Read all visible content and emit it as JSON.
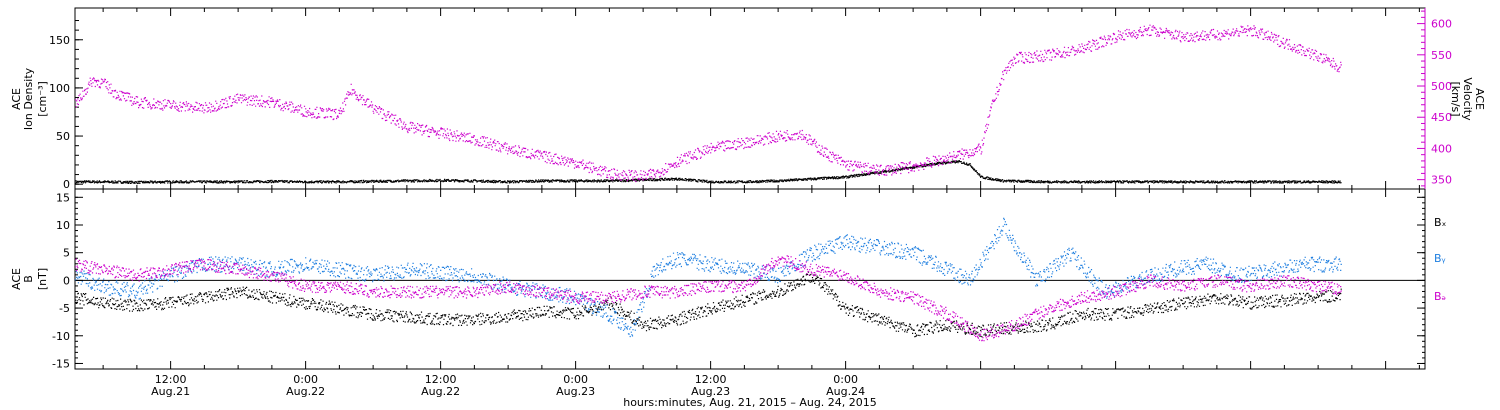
{
  "chart_data": [
    {
      "type": "scatter",
      "panel": "density-velocity",
      "ylabel_left": [
        "ACE",
        "Ion Density",
        "[cm⁻³]"
      ],
      "ylabel_right": [
        "ACE",
        "Velocity",
        "[km/s]"
      ],
      "yticks_left": [
        "0",
        "50",
        "100",
        "150"
      ],
      "ylim_left": [
        -5,
        183
      ],
      "yticks_right": [
        "350",
        "400",
        "450",
        "500",
        "550",
        "600"
      ],
      "ylim_right": [
        335,
        625
      ],
      "x_hours_since_aug21_start": [
        3.5,
        120
      ],
      "series": [
        {
          "axis": "left",
          "color": "#000000",
          "points": [
            [
              3.5,
              3
            ],
            [
              6,
              3
            ],
            [
              9,
              2.5
            ],
            [
              12,
              3
            ],
            [
              15,
              3
            ],
            [
              18,
              3
            ],
            [
              21,
              3.5
            ],
            [
              24,
              3
            ],
            [
              27,
              3
            ],
            [
              30,
              3.5
            ],
            [
              33,
              4
            ],
            [
              36,
              4.5
            ],
            [
              39,
              4
            ],
            [
              42,
              3
            ],
            [
              45,
              4
            ],
            [
              48,
              4
            ],
            [
              51,
              4
            ],
            [
              54,
              5
            ],
            [
              57,
              6
            ],
            [
              60,
              3
            ],
            [
              63,
              3
            ],
            [
              66,
              4
            ],
            [
              69,
              6
            ],
            [
              72,
              8
            ],
            [
              75,
              13
            ],
            [
              78,
              18
            ],
            [
              80,
              22
            ],
            [
              82,
              24
            ],
            [
              83,
              21
            ],
            [
              84,
              8
            ],
            [
              86,
              4
            ],
            [
              90,
              3
            ],
            [
              94,
              3
            ],
            [
              98,
              3
            ],
            [
              102,
              3
            ],
            [
              106,
              3
            ],
            [
              110,
              3
            ],
            [
              114,
              3
            ],
            [
              116,
              3
            ]
          ]
        },
        {
          "axis": "right",
          "color": "#cc00cc",
          "points": [
            [
              3.5,
              470
            ],
            [
              5,
              510
            ],
            [
              6,
              505
            ],
            [
              7,
              490
            ],
            [
              9,
              475
            ],
            [
              12,
              470
            ],
            [
              15,
              465
            ],
            [
              18,
              480
            ],
            [
              21,
              475
            ],
            [
              24,
              460
            ],
            [
              27,
              455
            ],
            [
              28,
              495
            ],
            [
              30,
              465
            ],
            [
              33,
              435
            ],
            [
              36,
              425
            ],
            [
              39,
              415
            ],
            [
              42,
              400
            ],
            [
              45,
              388
            ],
            [
              48,
              378
            ],
            [
              51,
              360
            ],
            [
              54,
              356
            ],
            [
              55,
              360
            ],
            [
              57,
              380
            ],
            [
              60,
              400
            ],
            [
              63,
              410
            ],
            [
              66,
              420
            ],
            [
              68,
              425
            ],
            [
              70,
              395
            ],
            [
              72,
              375
            ],
            [
              75,
              365
            ],
            [
              78,
              372
            ],
            [
              81,
              385
            ],
            [
              84,
              400
            ],
            [
              85,
              470
            ],
            [
              86,
              520
            ],
            [
              87,
              545
            ],
            [
              90,
              550
            ],
            [
              93,
              560
            ],
            [
              96,
              580
            ],
            [
              99,
              590
            ],
            [
              102,
              580
            ],
            [
              105,
              583
            ],
            [
              108,
              590
            ],
            [
              111,
              570
            ],
            [
              114,
              548
            ],
            [
              116,
              530
            ]
          ]
        }
      ]
    },
    {
      "type": "scatter",
      "panel": "magnetic-field",
      "ylabel": [
        "ACE",
        "B",
        "[nT]"
      ],
      "yticks": [
        "-15",
        "-10",
        "-5",
        "0",
        "5",
        "10",
        "15"
      ],
      "ylim": [
        -16,
        16.5
      ],
      "legend": [
        "Bₓ",
        "Bᵧ",
        "Bₔ"
      ],
      "legend_placement": "right",
      "x_hours_since_aug21_start": [
        3.5,
        120
      ],
      "series": [
        {
          "name": "Bx",
          "color": "#000000",
          "points": [
            [
              3.5,
              -3
            ],
            [
              6,
              -4
            ],
            [
              9,
              -4.5
            ],
            [
              12,
              -4
            ],
            [
              15,
              -3
            ],
            [
              18,
              -2
            ],
            [
              21,
              -3
            ],
            [
              24,
              -4
            ],
            [
              27,
              -5
            ],
            [
              30,
              -6
            ],
            [
              33,
              -6.5
            ],
            [
              36,
              -7
            ],
            [
              39,
              -7
            ],
            [
              42,
              -6.5
            ],
            [
              45,
              -5.5
            ],
            [
              48,
              -6
            ],
            [
              51,
              -4
            ],
            [
              54,
              -8
            ],
            [
              57,
              -7
            ],
            [
              60,
              -5
            ],
            [
              63,
              -3.5
            ],
            [
              66,
              -2
            ],
            [
              69,
              1
            ],
            [
              72,
              -5
            ],
            [
              75,
              -7
            ],
            [
              78,
              -9
            ],
            [
              81,
              -8
            ],
            [
              84,
              -9
            ],
            [
              87,
              -8.5
            ],
            [
              90,
              -8
            ],
            [
              93,
              -6
            ],
            [
              96,
              -6
            ],
            [
              99,
              -5
            ],
            [
              102,
              -4
            ],
            [
              105,
              -3
            ],
            [
              108,
              -4
            ],
            [
              111,
              -3.5
            ],
            [
              114,
              -3
            ],
            [
              116,
              -2.5
            ]
          ]
        },
        {
          "name": "By",
          "color": "#1f7fe0",
          "points": [
            [
              3.5,
              1
            ],
            [
              6,
              -1
            ],
            [
              9,
              -2
            ],
            [
              12,
              1
            ],
            [
              15,
              3
            ],
            [
              18,
              3
            ],
            [
              21,
              2
            ],
            [
              24,
              3
            ],
            [
              27,
              2
            ],
            [
              30,
              1
            ],
            [
              33,
              2
            ],
            [
              36,
              1.5
            ],
            [
              39,
              1
            ],
            [
              42,
              -1
            ],
            [
              45,
              -2
            ],
            [
              48,
              -3
            ],
            [
              51,
              -6
            ],
            [
              53,
              -9
            ],
            [
              55,
              2
            ],
            [
              57,
              4
            ],
            [
              60,
              3
            ],
            [
              63,
              2
            ],
            [
              66,
              1
            ],
            [
              69,
              5
            ],
            [
              72,
              7
            ],
            [
              75,
              6
            ],
            [
              78,
              5
            ],
            [
              80,
              3
            ],
            [
              83,
              0
            ],
            [
              86,
              10
            ],
            [
              89,
              0
            ],
            [
              92,
              5
            ],
            [
              95,
              -2
            ],
            [
              98,
              0
            ],
            [
              101,
              2
            ],
            [
              104,
              3
            ],
            [
              107,
              1
            ],
            [
              110,
              2
            ],
            [
              113,
              3
            ],
            [
              116,
              3
            ]
          ]
        },
        {
          "name": "Bz",
          "color": "#cc00cc",
          "points": [
            [
              3.5,
              3
            ],
            [
              6,
              2
            ],
            [
              9,
              1
            ],
            [
              12,
              2
            ],
            [
              15,
              3
            ],
            [
              18,
              2
            ],
            [
              21,
              1
            ],
            [
              24,
              -1
            ],
            [
              27,
              -1
            ],
            [
              30,
              -2
            ],
            [
              33,
              -2
            ],
            [
              36,
              -2
            ],
            [
              39,
              -2
            ],
            [
              42,
              -1
            ],
            [
              45,
              -2
            ],
            [
              48,
              -3
            ],
            [
              51,
              -3
            ],
            [
              54,
              -2
            ],
            [
              57,
              -2
            ],
            [
              60,
              -1
            ],
            [
              63,
              -1
            ],
            [
              66,
              4
            ],
            [
              69,
              2
            ],
            [
              72,
              1
            ],
            [
              75,
              -2
            ],
            [
              78,
              -3
            ],
            [
              81,
              -6
            ],
            [
              84,
              -10
            ],
            [
              87,
              -8
            ],
            [
              90,
              -5
            ],
            [
              93,
              -3
            ],
            [
              96,
              -2
            ],
            [
              99,
              0
            ],
            [
              102,
              -1
            ],
            [
              105,
              0
            ],
            [
              108,
              -1
            ],
            [
              111,
              0
            ],
            [
              114,
              -1
            ],
            [
              116,
              -1.5
            ]
          ]
        }
      ]
    }
  ],
  "xaxis": {
    "ticks": [
      {
        "hour": 12,
        "time": "12:00",
        "date": "Aug.21"
      },
      {
        "hour": 24,
        "time": "0:00",
        "date": "Aug.22"
      },
      {
        "hour": 36,
        "time": "12:00",
        "date": "Aug.22"
      },
      {
        "hour": 48,
        "time": "0:00",
        "date": "Aug.23"
      },
      {
        "hour": 60,
        "time": "12:00",
        "date": "Aug.23"
      },
      {
        "hour": 72,
        "time": "0:00",
        "date": "Aug.24"
      }
    ],
    "title": "hours:minutes, Aug. 21, 2015 – Aug. 24, 2015",
    "range_hours": [
      3.5,
      123.5
    ]
  }
}
